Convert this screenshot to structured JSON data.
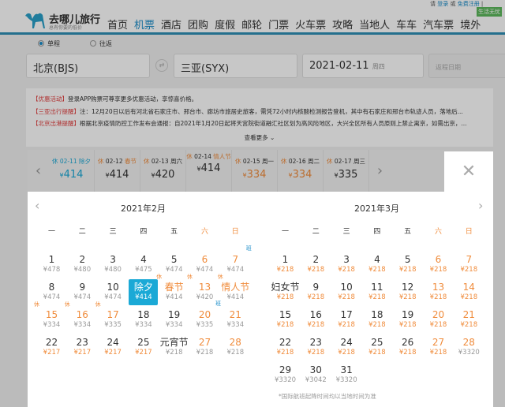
{
  "header": {
    "brand": "去哪儿旅行",
    "slogan": "总有你要的低价",
    "nav": [
      "首页",
      "机票",
      "酒店",
      "团购",
      "度假",
      "邮轮",
      "门票",
      "火车票",
      "攻略",
      "当地人",
      "车车",
      "汽车票",
      "境外"
    ],
    "active_nav": "机票",
    "login_prefix": "请",
    "login": "登录",
    "or": "或",
    "register": "免费注册",
    "badge": "生活无忧"
  },
  "search": {
    "one_way": "单程",
    "round_trip": "往返",
    "from": "北京(BJS)",
    "to": "三亚(SYX)",
    "date": "2021-02-11",
    "weekday": "周四",
    "return_placeholder": "返程日期"
  },
  "notices": [
    {
      "tag": "【优惠活动】",
      "text": "登录APP购票可尊享更多优惠活动，享惊喜价格。"
    },
    {
      "tag": "【三亚出行提醒】",
      "text": "注：12月20日以后有河北省石家庄市、邢台市、廊坊市旅居史旅客，需凭72小时内核酸检测报告登机，其中有石家庄和邢台市轨迹人员，落地后..."
    },
    {
      "tag": "【北京出港提醒】",
      "text": "根据北京疫情防控工作发布会通报：自2021年1月20日起将天宫院街道融汇社区划为高风险地区，大兴全区所有人员原则上禁止离京，如需出京，..."
    }
  ],
  "more": "查看更多 ⌄",
  "strip": [
    {
      "xiu": "休",
      "date": "02-11",
      "day": "除夕",
      "price": "414",
      "selected": true
    },
    {
      "xiu": "休",
      "date": "02-12",
      "day": "春节",
      "price": "414"
    },
    {
      "xiu": "休",
      "date": "02-13",
      "day": "周六",
      "price": "420"
    },
    {
      "xiu": "休",
      "date": "02-14",
      "day": "情人节",
      "price": "414"
    },
    {
      "xiu": "休",
      "date": "02-15",
      "day": "周一",
      "price": "334",
      "low": true
    },
    {
      "xiu": "休",
      "date": "02-16",
      "day": "周二",
      "price": "334",
      "low": true
    },
    {
      "xiu": "休",
      "date": "02-17",
      "day": "周三",
      "price": "335"
    }
  ],
  "currency": "¥",
  "calendar": {
    "weekdays": [
      "一",
      "二",
      "三",
      "四",
      "五",
      "六",
      "日"
    ],
    "months": [
      {
        "title": "2021年2月",
        "cells": [
          [
            "1",
            "¥478"
          ],
          [
            "2",
            "¥480"
          ],
          [
            "3",
            "¥480"
          ],
          [
            "4",
            "¥475"
          ],
          [
            "5",
            "¥474"
          ],
          [
            "6",
            "¥474"
          ],
          [
            "7",
            "¥474",
            "班"
          ],
          [
            "8",
            "¥474"
          ],
          [
            "9",
            "¥474"
          ],
          [
            "10",
            "¥474"
          ],
          [
            "除夕",
            "¥414",
            "休",
            "sel"
          ],
          [
            "春节",
            "¥414",
            "休",
            "hol"
          ],
          [
            "13",
            "¥420",
            "休"
          ],
          [
            "情人节",
            "¥414",
            "休",
            "hol"
          ],
          [
            "15",
            "¥334",
            "休",
            "hol"
          ],
          [
            "16",
            "¥334",
            "休",
            "hol"
          ],
          [
            "17",
            "¥335",
            "休",
            "hol"
          ],
          [
            "18",
            "¥334"
          ],
          [
            "19",
            "¥334"
          ],
          [
            "20",
            "¥335",
            "班"
          ],
          [
            "21",
            "¥334"
          ],
          [
            "22",
            "¥217",
            "",
            "low"
          ],
          [
            "23",
            "¥217",
            "",
            "low"
          ],
          [
            "24",
            "¥217",
            "",
            "low"
          ],
          [
            "25",
            "¥217",
            "",
            "low"
          ],
          [
            "元宵节",
            "¥218"
          ],
          [
            "27",
            "¥218"
          ],
          [
            "28",
            "¥218"
          ]
        ]
      },
      {
        "title": "2021年3月",
        "cells": [
          [
            "1",
            "¥218",
            "",
            "low"
          ],
          [
            "2",
            "¥218",
            "",
            "low"
          ],
          [
            "3",
            "¥218",
            "",
            "low"
          ],
          [
            "4",
            "¥218",
            "",
            "low"
          ],
          [
            "5",
            "¥218",
            "",
            "low"
          ],
          [
            "6",
            "¥218",
            "",
            "low"
          ],
          [
            "7",
            "¥218",
            "",
            "low"
          ],
          [
            "妇女节",
            "¥218",
            "",
            "low"
          ],
          [
            "9",
            "¥218",
            "",
            "low"
          ],
          [
            "10",
            "¥218",
            "",
            "low"
          ],
          [
            "11",
            "¥218",
            "",
            "low"
          ],
          [
            "12",
            "¥218",
            "",
            "low"
          ],
          [
            "13",
            "¥218",
            "",
            "low"
          ],
          [
            "14",
            "¥218",
            "",
            "low"
          ],
          [
            "15",
            "¥218",
            "",
            "low"
          ],
          [
            "16",
            "¥218",
            "",
            "low"
          ],
          [
            "17",
            "¥218",
            "",
            "low"
          ],
          [
            "18",
            "¥218",
            "",
            "low"
          ],
          [
            "19",
            "¥218",
            "",
            "low"
          ],
          [
            "20",
            "¥218",
            "",
            "low"
          ],
          [
            "21",
            "¥218",
            "",
            "low"
          ],
          [
            "22",
            "¥218",
            "",
            "low"
          ],
          [
            "23",
            "¥218",
            "",
            "low"
          ],
          [
            "24",
            "¥218",
            "",
            "low"
          ],
          [
            "25",
            "¥218",
            "",
            "low"
          ],
          [
            "26",
            "¥218",
            "",
            "low"
          ],
          [
            "27",
            "¥218",
            "",
            "low"
          ],
          [
            "28",
            "¥3320"
          ],
          [
            "29",
            "¥3320"
          ],
          [
            "30",
            "¥3042"
          ],
          [
            "31",
            "¥3320"
          ]
        ]
      }
    ],
    "footnote": "*国际航班起降时间均以当地时间为准"
  },
  "colors": {
    "accent": "#1ba9d6",
    "weekend": "#f08c3c",
    "nav_active": "#1a8cc8"
  }
}
